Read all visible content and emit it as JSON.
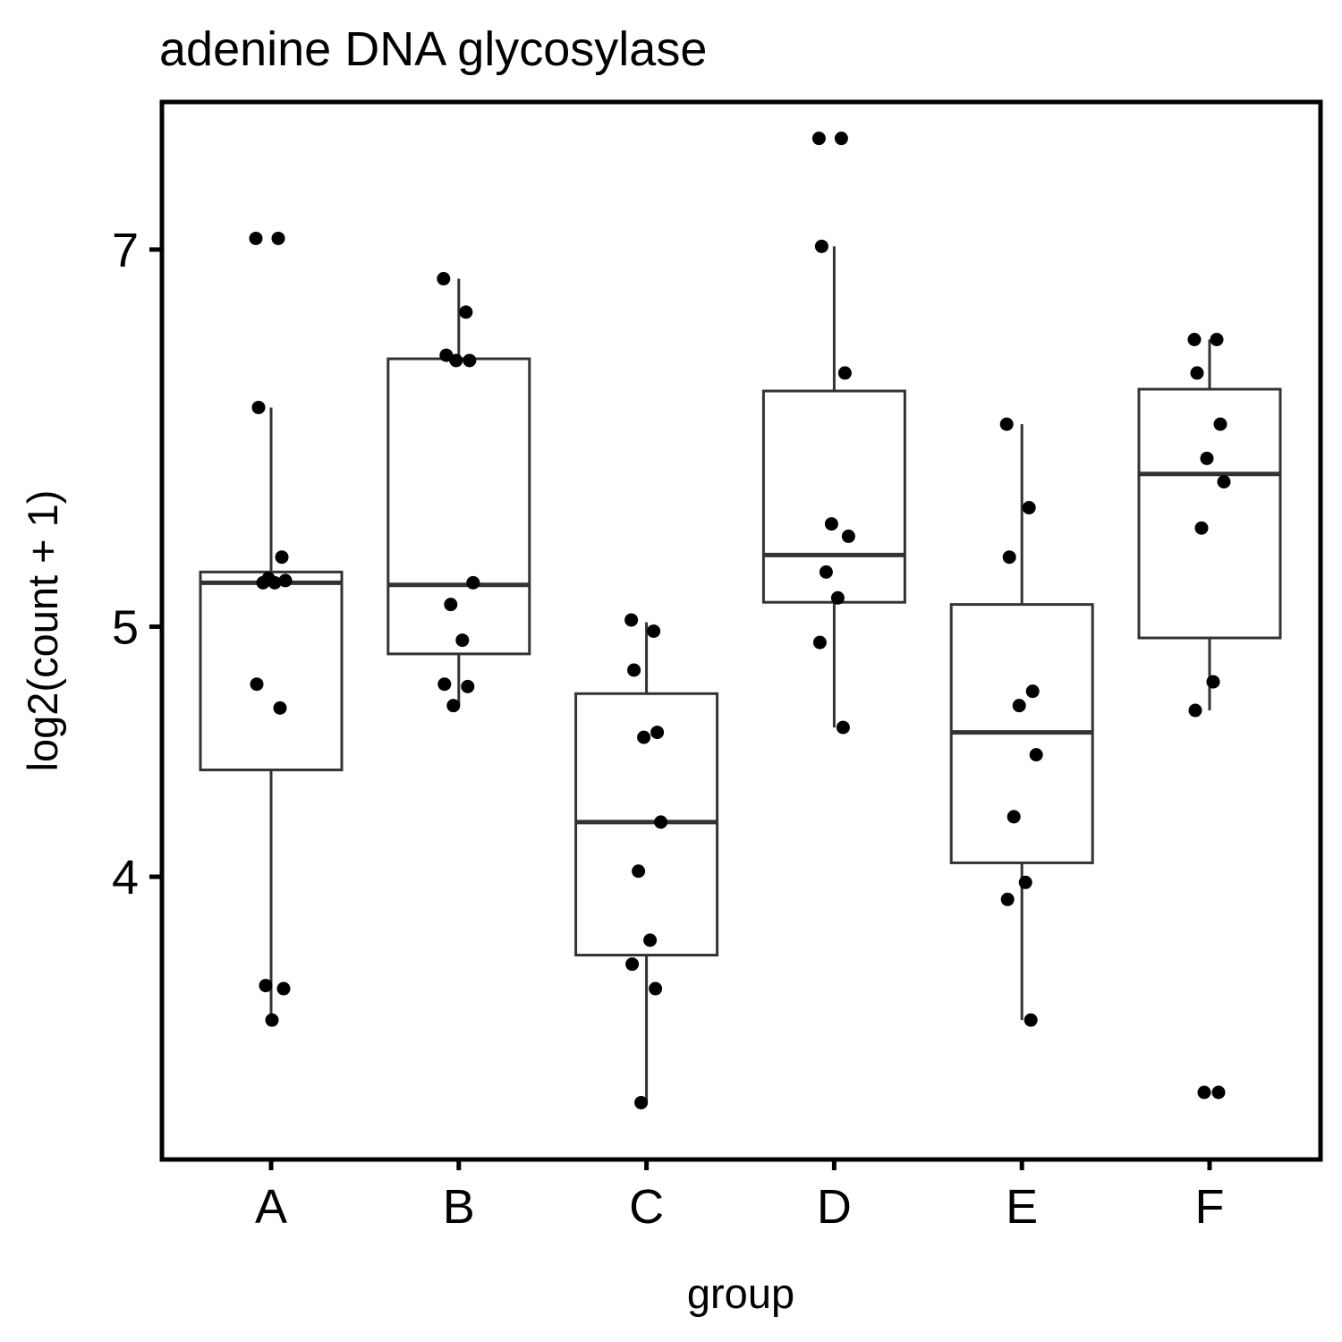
{
  "chart_data": {
    "type": "boxplot",
    "title": "adenine DNA glycosylase",
    "xlabel": "group",
    "ylabel": "log2(count + 1)",
    "y_scale": "log2",
    "y_ticks": [
      4,
      5,
      7
    ],
    "ylim": [
      3.3,
      7.9
    ],
    "grid": false,
    "legend": "none",
    "colors": {
      "box_stroke": "#333333",
      "point": "#000000",
      "axis": "#000000",
      "background": "#ffffff"
    },
    "categories": [
      "A",
      "B",
      "C",
      "D",
      "E",
      "F"
    ],
    "groups": [
      {
        "name": "A",
        "box": {
          "lower_whisker": 3.52,
          "q1": 4.4,
          "median": 5.2,
          "q3": 5.25,
          "upper_whisker": 6.08
        },
        "points": [
          7.07,
          7.07,
          6.08,
          5.32,
          5.22,
          5.21,
          5.2,
          5.2,
          4.75,
          4.65,
          3.63,
          3.62,
          3.52
        ]
      },
      {
        "name": "B",
        "box": {
          "lower_whisker": 4.66,
          "q1": 4.88,
          "median": 5.19,
          "q3": 6.35,
          "upper_whisker": 6.82
        },
        "points": [
          6.82,
          6.62,
          6.37,
          6.34,
          6.34,
          5.2,
          5.1,
          4.94,
          4.75,
          4.74,
          4.66
        ]
      },
      {
        "name": "C",
        "box": {
          "lower_whisker": 3.27,
          "q1": 3.73,
          "median": 4.2,
          "q3": 4.71,
          "upper_whisker": 5.02
        },
        "points": [
          5.03,
          4.98,
          4.81,
          4.55,
          4.53,
          4.2,
          4.02,
          3.78,
          3.7,
          3.62,
          3.27
        ]
      },
      {
        "name": "D",
        "box": {
          "lower_whisker": 4.57,
          "q1": 5.11,
          "median": 5.33,
          "q3": 6.17,
          "upper_whisker": 7.02
        },
        "points": [
          7.73,
          7.73,
          7.02,
          6.27,
          5.48,
          5.42,
          5.25,
          5.13,
          4.93,
          4.57
        ]
      },
      {
        "name": "E",
        "box": {
          "lower_whisker": 3.52,
          "q1": 4.05,
          "median": 4.55,
          "q3": 5.1,
          "upper_whisker": 5.99
        },
        "points": [
          5.99,
          5.56,
          5.32,
          4.72,
          4.66,
          4.46,
          4.22,
          3.98,
          3.92,
          3.52
        ]
      },
      {
        "name": "F",
        "box": {
          "lower_whisker": 4.64,
          "q1": 4.95,
          "median": 5.73,
          "q3": 6.18,
          "upper_whisker": 6.46
        },
        "points": [
          6.46,
          6.46,
          6.27,
          5.99,
          5.81,
          5.69,
          5.46,
          4.76,
          4.64,
          3.3,
          3.3
        ]
      }
    ]
  }
}
